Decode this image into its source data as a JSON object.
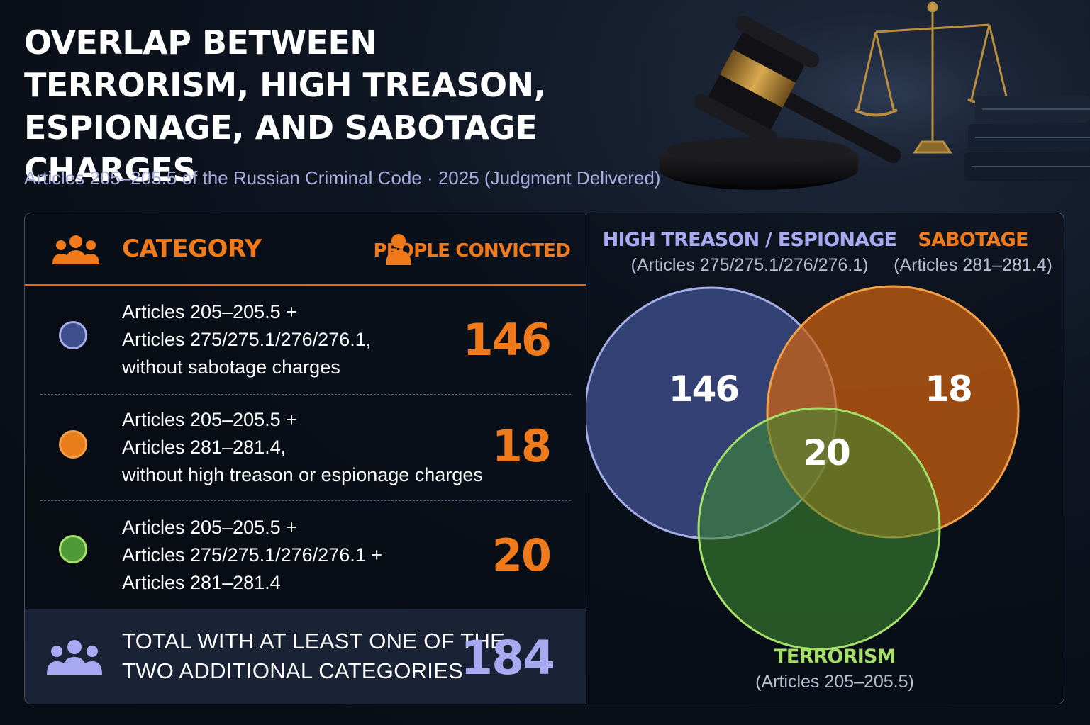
{
  "header": {
    "title": "OVERLAP BETWEEN TERRORISM, HIGH TREASON, ESPIONAGE, AND SABOTAGE CHARGES",
    "subtitle": "Articles 205–205.5 of the Russian Criminal Code · 2025 (Judgment Delivered)"
  },
  "table": {
    "category_header": "CATEGORY",
    "people_header": "PEOPLE CONVICTED",
    "rows": [
      {
        "color": "#3f4f8e",
        "border": "#a6aee8",
        "lines": [
          "Articles 205–205.5 +",
          "Articles 275/275.1/276/276.1,",
          "without sabotage charges"
        ],
        "value": "146"
      },
      {
        "color": "#e87d1a",
        "border": "#f3a04a",
        "lines": [
          "Articles 205–205.5 +",
          "Articles 281–281.4,",
          "without high treason or espionage charges"
        ],
        "value": "18"
      },
      {
        "color": "#4f9a38",
        "border": "#a6e06a",
        "lines": [
          "Articles 205–205.5 +",
          "Articles 275/275.1/276/276.1 +",
          "Articles 281–281.4"
        ],
        "value": "20"
      }
    ],
    "total": {
      "lines": [
        "TOTAL WITH AT LEAST ONE OF THE",
        "TWO ADDITIONAL CATEGORIES"
      ],
      "value": "184"
    }
  },
  "venn": {
    "sets": {
      "treason": {
        "title": "HIGH TREASON / ESPIONAGE",
        "articles": "(Articles 275/275.1/276/276.1)",
        "color": "#a6aee8"
      },
      "sabotage": {
        "title": "SABOTAGE",
        "articles": "(Articles 281–281.4)",
        "color": "#f07a1a"
      },
      "terrorism": {
        "title": "TERRORISM",
        "articles": "(Articles 205–205.5)",
        "color": "#a6e06a"
      }
    },
    "region_values": {
      "treason_terrorism": "146",
      "sabotage_terrorism": "18",
      "all_three": "20"
    }
  },
  "colors": {
    "accent_orange": "#f07a1a",
    "accent_lavender": "#a7aaf0",
    "accent_green": "#a6e06a"
  }
}
